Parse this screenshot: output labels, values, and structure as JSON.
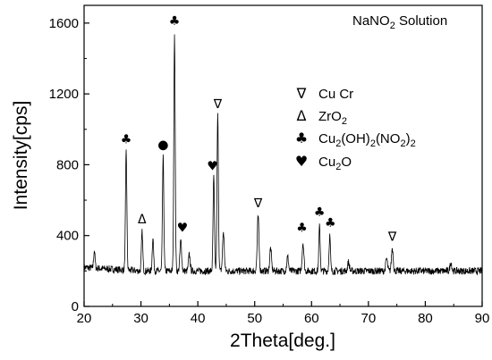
{
  "chart_data": {
    "type": "line",
    "title": "",
    "xlabel": "2Theta[deg.]",
    "ylabel": "Intensity[cps]",
    "xlim": [
      20,
      90
    ],
    "ylim": [
      0,
      1700
    ],
    "xticks": [
      20,
      30,
      40,
      50,
      60,
      70,
      80,
      90
    ],
    "yticks": [
      0,
      400,
      800,
      1200,
      1600
    ],
    "grid": false,
    "annotation_text": {
      "main": "NaNO",
      "sub": "2",
      "tail": " Solution"
    },
    "legend": {
      "placement": "top-right",
      "entries": [
        {
          "symbol": "∇",
          "name": "Cu  Cr",
          "parts": [
            {
              "t": "Cu  Cr"
            }
          ]
        },
        {
          "symbol": "Δ",
          "name": "ZrO2",
          "parts": [
            {
              "t": "ZrO"
            },
            {
              "t": "2",
              "sub": true
            }
          ]
        },
        {
          "symbol": "♣",
          "name": "Cu2(OH)2(NO2)2",
          "parts": [
            {
              "t": "Cu"
            },
            {
              "t": "2",
              "sub": true
            },
            {
              "t": "(OH)"
            },
            {
              "t": "2",
              "sub": true
            },
            {
              "t": "(NO"
            },
            {
              "t": "2",
              "sub": true
            },
            {
              "t": ")"
            },
            {
              "t": "2",
              "sub": true
            }
          ]
        },
        {
          "symbol": "♥",
          "name": "Cu2O",
          "parts": [
            {
              "t": " Cu"
            },
            {
              "t": "2",
              "sub": true
            },
            {
              "t": "O"
            }
          ]
        }
      ]
    },
    "background_level": 200,
    "series": [
      {
        "peaks": [
          {
            "x": 21.8,
            "y": 300,
            "w": 0.12
          },
          {
            "x": 27.4,
            "y": 870,
            "w": 0.12
          },
          {
            "x": 30.2,
            "y": 420,
            "w": 0.12
          },
          {
            "x": 32.1,
            "y": 390,
            "w": 0.12
          },
          {
            "x": 33.9,
            "y": 840,
            "w": 0.12
          },
          {
            "x": 35.9,
            "y": 1540,
            "w": 0.12
          },
          {
            "x": 37.0,
            "y": 370,
            "w": 0.15
          },
          {
            "x": 38.5,
            "y": 290,
            "w": 0.15
          },
          {
            "x": 42.8,
            "y": 730,
            "w": 0.12
          },
          {
            "x": 43.5,
            "y": 1080,
            "w": 0.12
          },
          {
            "x": 44.5,
            "y": 420,
            "w": 0.15
          },
          {
            "x": 50.6,
            "y": 510,
            "w": 0.15
          },
          {
            "x": 52.8,
            "y": 330,
            "w": 0.15
          },
          {
            "x": 55.8,
            "y": 280,
            "w": 0.15
          },
          {
            "x": 58.5,
            "y": 360,
            "w": 0.15
          },
          {
            "x": 61.4,
            "y": 450,
            "w": 0.12
          },
          {
            "x": 63.2,
            "y": 400,
            "w": 0.12
          },
          {
            "x": 66.5,
            "y": 250,
            "w": 0.15
          },
          {
            "x": 73.2,
            "y": 270,
            "w": 0.15
          },
          {
            "x": 74.2,
            "y": 330,
            "w": 0.15
          },
          {
            "x": 84.5,
            "y": 250,
            "w": 0.15
          }
        ]
      }
    ],
    "peak_markers": [
      {
        "x": 27.4,
        "y": 920,
        "symbol": "♣"
      },
      {
        "x": 30.2,
        "y": 470,
        "symbol": "Δ"
      },
      {
        "x": 33.9,
        "y": 890,
        "symbol": "●"
      },
      {
        "x": 35.9,
        "y": 1590,
        "symbol": "♣"
      },
      {
        "x": 37.3,
        "y": 420,
        "symbol": "♥"
      },
      {
        "x": 42.6,
        "y": 770,
        "symbol": "♥"
      },
      {
        "x": 43.5,
        "y": 1120,
        "symbol": "∇"
      },
      {
        "x": 50.6,
        "y": 560,
        "symbol": "∇"
      },
      {
        "x": 58.3,
        "y": 420,
        "symbol": "♣"
      },
      {
        "x": 61.4,
        "y": 510,
        "symbol": "♣"
      },
      {
        "x": 63.3,
        "y": 450,
        "symbol": "♣"
      },
      {
        "x": 74.2,
        "y": 370,
        "symbol": "∇"
      }
    ]
  }
}
